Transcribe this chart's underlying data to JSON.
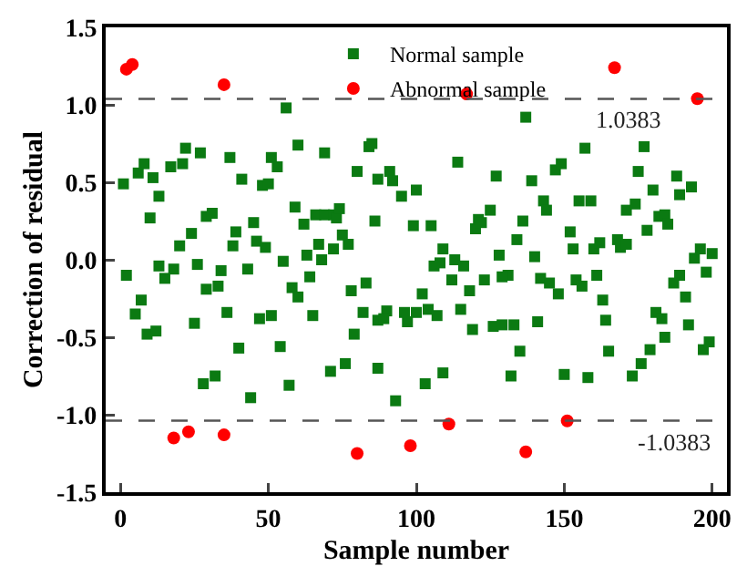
{
  "chart_data": {
    "type": "scatter",
    "xlabel": "Sample number",
    "ylabel": "Correction of residual",
    "xlim": [
      -5,
      205
    ],
    "xticks": [
      0,
      50,
      100,
      150,
      200
    ],
    "ylim": [
      -1.5,
      1.5
    ],
    "yticks": [
      -1.5,
      {
        "value": -1,
        "label": "-1.0"
      },
      -0.5,
      {
        "value": 0,
        "label": "0.0"
      },
      0.5,
      {
        "value": 1,
        "label": "1.0"
      },
      1.5
    ],
    "grid": false,
    "legend": "top",
    "series": [
      {
        "name": "Normal sample",
        "color": "#0b7a12",
        "marker": "square",
        "x": [
          1,
          2,
          6,
          8,
          11,
          13,
          10,
          17,
          21,
          22,
          27,
          20,
          24,
          13,
          15,
          18,
          26,
          29,
          31,
          37,
          41,
          39,
          38,
          34,
          29,
          33,
          43,
          45,
          46,
          49,
          48,
          50,
          51,
          53,
          55,
          56,
          59,
          60,
          62,
          63,
          64,
          58,
          66,
          67,
          68,
          69,
          69,
          72,
          72,
          73,
          74,
          75,
          77,
          78,
          80,
          83,
          84,
          85,
          86,
          87,
          91,
          92,
          95,
          100,
          99,
          105,
          114,
          109,
          106,
          108,
          113,
          116,
          112,
          120,
          121,
          122,
          125,
          123,
          127,
          128,
          131,
          129,
          134,
          136,
          137,
          139,
          140,
          143,
          144,
          142,
          145,
          147,
          149,
          152,
          153,
          154,
          155,
          159,
          157,
          160,
          162,
          161,
          168,
          169,
          171,
          171,
          174,
          175,
          177,
          178,
          180,
          182,
          184,
          185,
          188,
          189,
          193,
          194,
          196,
          200,
          198,
          189,
          187,
          5,
          7,
          9,
          12,
          25,
          28,
          32,
          36,
          40,
          44,
          47,
          51,
          54,
          57,
          60,
          65,
          71,
          76,
          79,
          82,
          87,
          87,
          90,
          89,
          93,
          96,
          97,
          100,
          102,
          104,
          107,
          103,
          109,
          115,
          118,
          119,
          126,
          129,
          133,
          132,
          135,
          141,
          148,
          150,
          156,
          158,
          163,
          164,
          165,
          173,
          176,
          179,
          181,
          183,
          184,
          191,
          192,
          197,
          199
        ],
        "values": [
          0.49,
          -0.1,
          0.56,
          0.62,
          0.53,
          0.41,
          0.27,
          0.6,
          0.62,
          0.72,
          0.69,
          0.09,
          0.17,
          -0.04,
          -0.12,
          -0.06,
          -0.03,
          0.28,
          0.3,
          0.66,
          0.52,
          0.18,
          0.09,
          -0.07,
          -0.19,
          -0.17,
          -0.06,
          0.24,
          0.12,
          0.08,
          0.48,
          0.49,
          0.66,
          0.6,
          -0.01,
          0.98,
          0.34,
          0.74,
          0.23,
          0.03,
          -0.11,
          -0.18,
          0.29,
          0.1,
          0.0,
          0.69,
          0.29,
          0.07,
          0.29,
          0.27,
          0.33,
          0.16,
          0.1,
          -0.2,
          0.57,
          -0.15,
          0.73,
          0.75,
          0.25,
          0.52,
          0.57,
          0.51,
          0.41,
          0.45,
          0.22,
          0.22,
          0.63,
          0.07,
          -0.04,
          -0.02,
          0.0,
          -0.04,
          -0.13,
          0.2,
          0.26,
          0.24,
          0.32,
          -0.13,
          0.54,
          0.03,
          -0.1,
          -0.11,
          0.13,
          0.25,
          0.92,
          0.51,
          0.02,
          0.38,
          0.32,
          -0.12,
          -0.15,
          0.58,
          0.62,
          0.18,
          0.07,
          -0.13,
          0.38,
          0.38,
          0.72,
          0.07,
          0.11,
          -0.1,
          0.13,
          0.08,
          0.1,
          0.32,
          0.36,
          0.57,
          0.73,
          0.19,
          0.45,
          0.28,
          0.29,
          0.23,
          0.54,
          0.42,
          0.47,
          0.01,
          0.07,
          0.04,
          -0.08,
          -0.1,
          -0.15,
          -0.35,
          -0.26,
          -0.48,
          -0.46,
          -0.41,
          -0.8,
          -0.75,
          -0.34,
          -0.57,
          -0.89,
          -0.38,
          -0.36,
          -0.56,
          -0.81,
          -0.24,
          -0.36,
          -0.72,
          -0.67,
          -0.48,
          -0.34,
          -0.39,
          -0.7,
          -0.33,
          -0.38,
          -0.91,
          -0.34,
          -0.4,
          -0.34,
          -0.22,
          -0.32,
          -0.36,
          -0.8,
          -0.73,
          -0.32,
          -0.2,
          -0.45,
          -0.43,
          -0.42,
          -0.42,
          -0.75,
          -0.59,
          -0.4,
          -0.22,
          -0.74,
          -0.17,
          -0.76,
          -0.26,
          -0.39,
          -0.59,
          -0.75,
          -0.67,
          -0.58,
          -0.34,
          -0.38,
          -0.5,
          -0.24,
          -0.42,
          -0.58,
          -0.53
        ]
      },
      {
        "name": "Abnormal sample",
        "color": "#ff0000",
        "marker": "circle",
        "x": [
          2,
          4,
          35,
          117,
          167,
          195,
          18,
          23,
          35,
          80,
          98,
          111,
          137,
          151
        ],
        "values": [
          1.23,
          1.26,
          1.13,
          1.07,
          1.24,
          1.04,
          -1.15,
          -1.11,
          -1.13,
          -1.25,
          -1.2,
          -1.06,
          -1.24,
          -1.04
        ]
      }
    ],
    "ref_lines": [
      {
        "axis": "y",
        "value": 1.0383,
        "label": "1.0383",
        "color": "#555555",
        "line_style": "dashed"
      },
      {
        "axis": "y",
        "value": -1.0383,
        "label": "-1.0383",
        "color": "#555555",
        "line_style": "dashed"
      }
    ]
  }
}
